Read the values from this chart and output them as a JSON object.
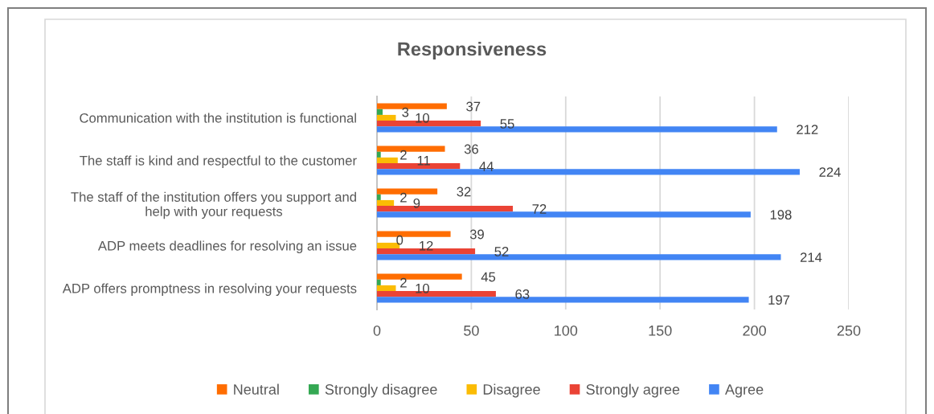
{
  "chart_data": {
    "type": "bar",
    "orientation": "horizontal",
    "title": "Responsiveness",
    "categories": [
      "Communication with the institution is functional",
      "The staff is kind and respectful to the customer",
      "The staff of the institution offers you support and\nhelp with your requests",
      "ADP meets deadlines for resolving an issue",
      "ADP offers promptness in resolving your requests"
    ],
    "series": [
      {
        "name": "Neutral",
        "color": "#ff6d01",
        "values": [
          37,
          36,
          32,
          39,
          45
        ]
      },
      {
        "name": "Strongly disagree",
        "color": "#34a853",
        "values": [
          3,
          2,
          2,
          0,
          2
        ]
      },
      {
        "name": "Disagree",
        "color": "#fbbc04",
        "values": [
          10,
          11,
          9,
          12,
          10
        ]
      },
      {
        "name": "Strongly agree",
        "color": "#ea4335",
        "values": [
          55,
          44,
          72,
          52,
          63
        ]
      },
      {
        "name": "Agree",
        "color": "#4285f4",
        "values": [
          212,
          224,
          198,
          214,
          197
        ]
      }
    ],
    "xlim": [
      0,
      250
    ],
    "xticks": [
      0,
      50,
      100,
      150,
      200,
      250
    ],
    "grid": "x",
    "legend": "bottom",
    "data_labels": true
  }
}
